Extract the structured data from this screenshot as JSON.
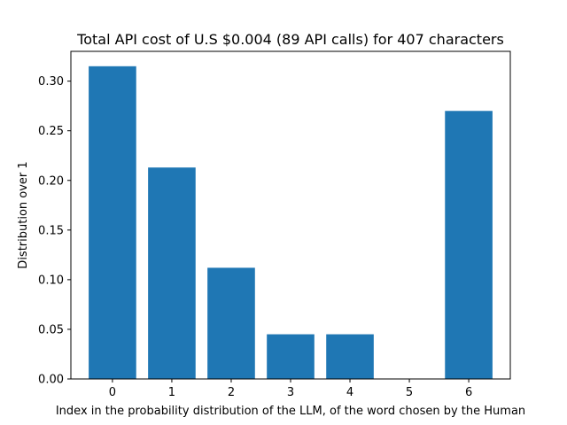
{
  "chart_data": {
    "type": "bar",
    "title": "Total API cost of U.S $0.004 (89 API calls) for 407 characters",
    "xlabel": "Index in the probability distribution of the LLM, of the word chosen by the Human",
    "ylabel": "Distribution over 1",
    "categories": [
      "0",
      "1",
      "2",
      "3",
      "4",
      "5",
      "6"
    ],
    "values": [
      0.315,
      0.213,
      0.112,
      0.045,
      0.045,
      0.0,
      0.27
    ],
    "ylim": [
      0,
      0.33
    ],
    "yticks": [
      "0.00",
      "0.05",
      "0.10",
      "0.15",
      "0.20",
      "0.25",
      "0.30"
    ],
    "bar_color": "#1f77b4",
    "grid": false,
    "legend": "none"
  }
}
